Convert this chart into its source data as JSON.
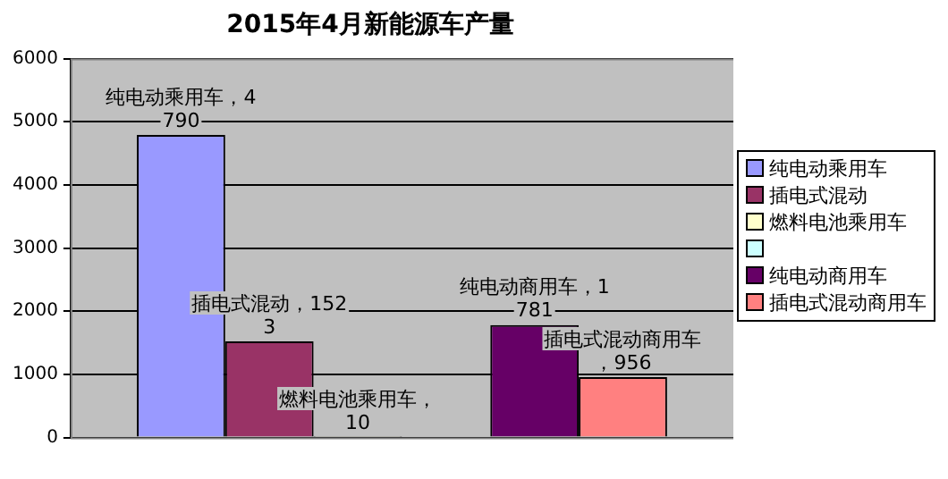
{
  "chart_data": {
    "type": "bar",
    "title": "2015年4月新能源车产量",
    "categories": [
      null
    ],
    "series": [
      {
        "name": "纯电动乘用车",
        "color": "#9999ff",
        "values": [
          4790
        ],
        "value_labels": [
          "纯电动乘用车，4790"
        ]
      },
      {
        "name": "插电式混动",
        "color": "#993366",
        "values": [
          1523
        ],
        "value_labels": [
          "插电式混动，1523"
        ]
      },
      {
        "name": "燃料电池乘用车",
        "color": "#ffffcc",
        "values": [
          10
        ],
        "value_labels": [
          "燃料电池乘用车，10"
        ]
      },
      {
        "color": "#ccffff",
        "values": [
          null
        ]
      },
      {
        "name": "纯电动商用车",
        "color": "#660066",
        "values": [
          1781
        ],
        "value_labels": [
          "纯电动商用车，1781"
        ]
      },
      {
        "name": "插电式混动商用车",
        "color": "#ff8080",
        "values": [
          956
        ],
        "value_labels": [
          "插电式混动商用车，956"
        ]
      }
    ],
    "ylim": [
      0,
      6000
    ],
    "yticks": [
      0,
      1000,
      2000,
      3000,
      4000,
      5000,
      6000
    ],
    "grid": "y",
    "legend": "right"
  }
}
